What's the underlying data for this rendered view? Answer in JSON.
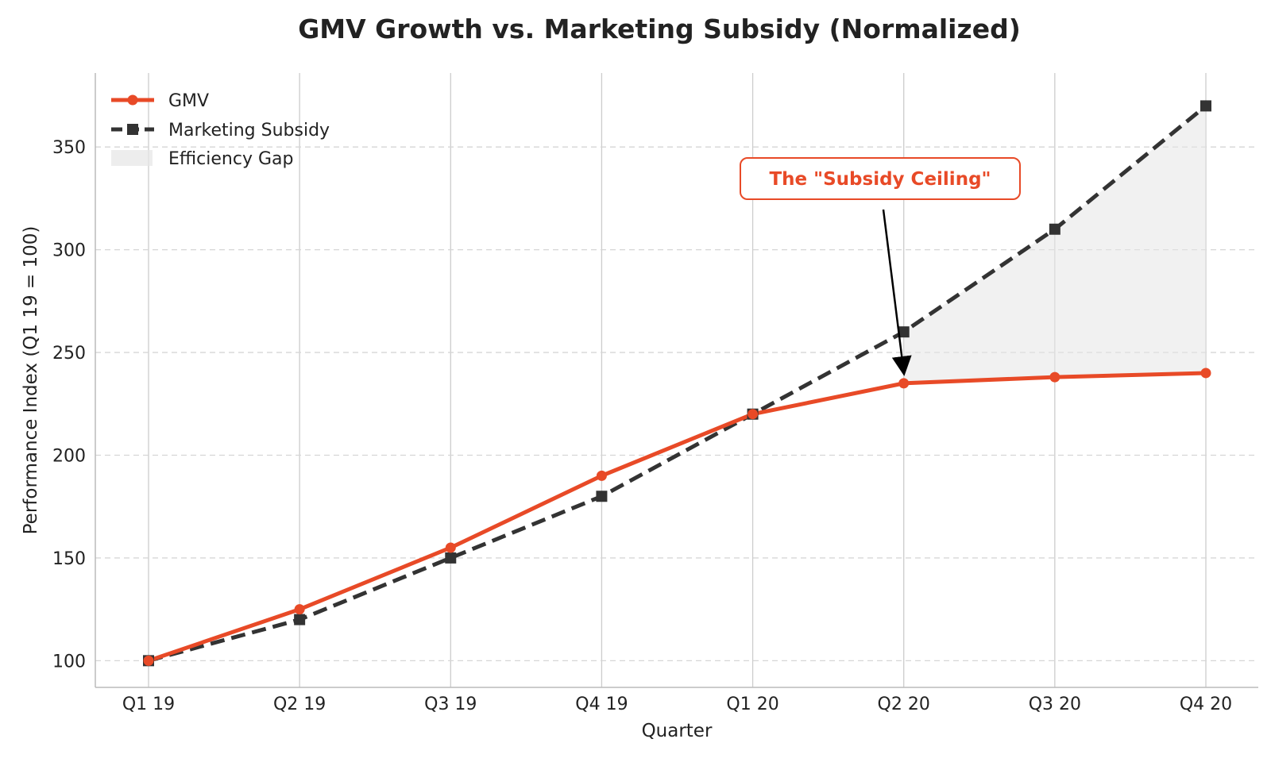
{
  "chart_data": {
    "type": "line",
    "title": "GMV Growth vs. Marketing Subsidy (Normalized)",
    "xlabel": "Quarter",
    "ylabel": "Performance Index (Q1 19 = 100)",
    "categories": [
      "Q1 19",
      "Q2 19",
      "Q3 19",
      "Q4 19",
      "Q1 20",
      "Q2 20",
      "Q3 20",
      "Q4 20"
    ],
    "series": [
      {
        "name": "GMV",
        "values": [
          100,
          125,
          155,
          190,
          220,
          235,
          238,
          240
        ],
        "color": "#e84a27",
        "style": "solid",
        "marker": "circle"
      },
      {
        "name": "Marketing Subsidy",
        "values": [
          100,
          120,
          150,
          180,
          220,
          260,
          310,
          370
        ],
        "color": "#333333",
        "style": "dashed",
        "marker": "square"
      }
    ],
    "fill": {
      "name": "Efficiency Gap",
      "from_index": 5,
      "to_index": 7,
      "between": [
        "GMV",
        "Marketing Subsidy"
      ],
      "color": "#e6e6e6"
    },
    "ylim": [
      87,
      386
    ],
    "yticks": [
      100,
      150,
      200,
      250,
      300,
      350
    ],
    "grid": {
      "x": "solid",
      "y": "dashed"
    },
    "legend": {
      "position": "top-left",
      "entries": [
        "GMV",
        "Marketing Subsidy",
        "Efficiency Gap"
      ]
    },
    "annotations": [
      {
        "text": "The \"Subsidy Ceiling\"",
        "target_category": "Q2 20",
        "target_value": 235,
        "color": "#e84a27"
      }
    ]
  }
}
